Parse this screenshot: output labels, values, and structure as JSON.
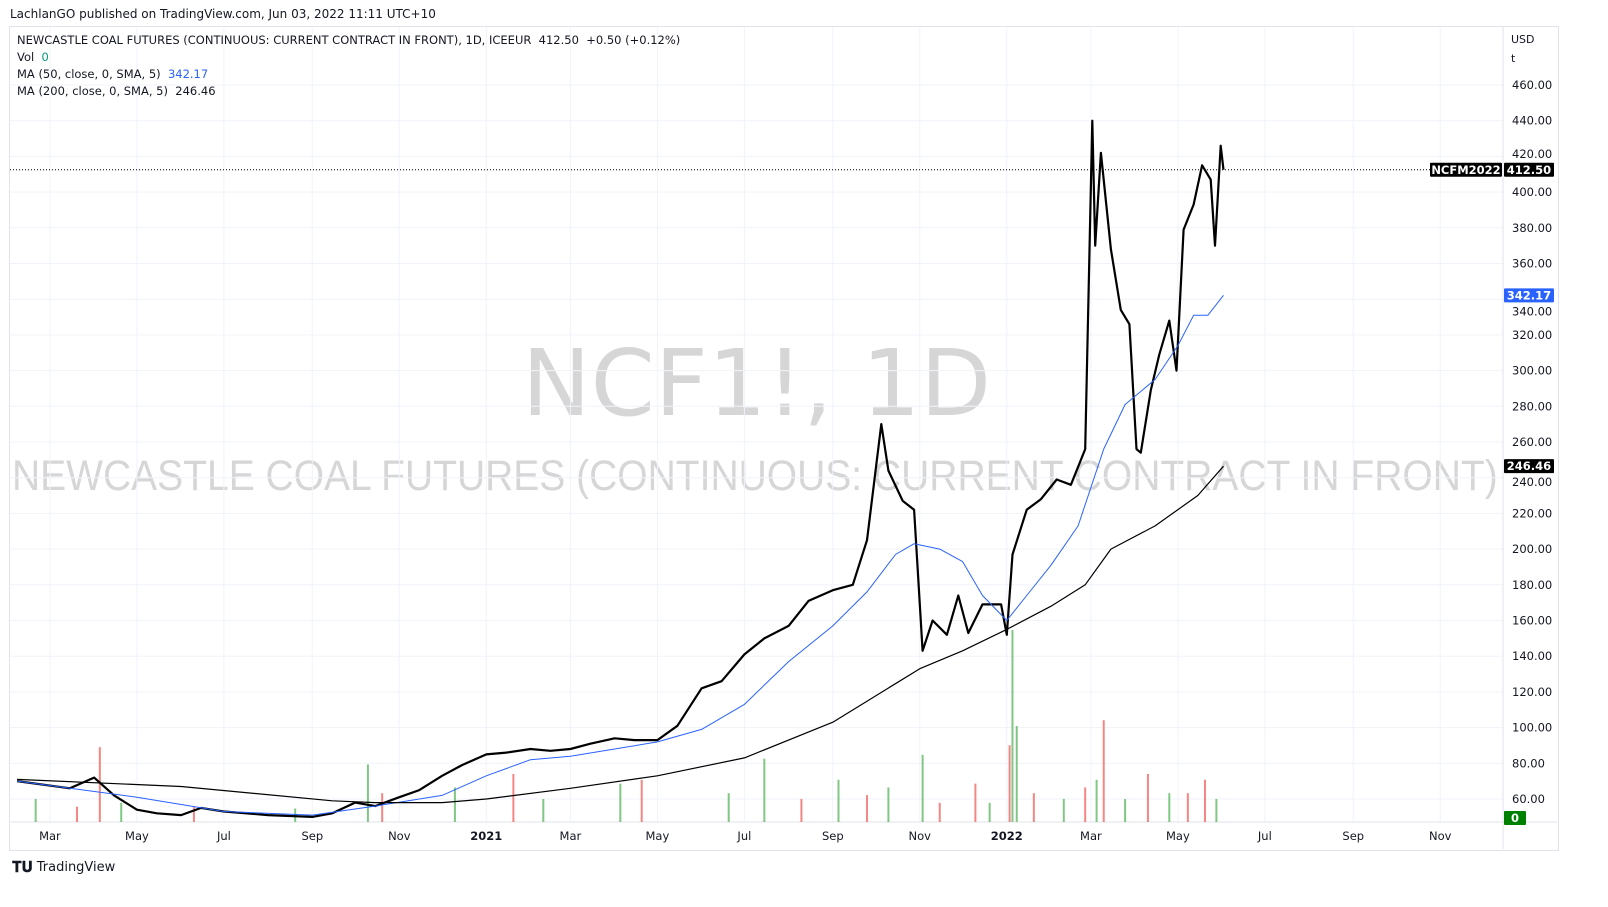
{
  "publish_line": "LachlanGO published on TradingView.com, Jun 03, 2022 11:11 UTC+10",
  "legend": {
    "title": "NEWCASTLE COAL FUTURES (CONTINUOUS: CURRENT CONTRACT IN FRONT), 1D, ICEEUR",
    "last": "412.50",
    "change": "+0.50 (+0.12%)",
    "vol_label": "Vol",
    "vol_value": "0",
    "ma50_label": "MA (50, close, 0, SMA, 5)",
    "ma50_value": "342.17",
    "ma200_label": "MA (200, close, 0, SMA, 5)",
    "ma200_value": "246.46"
  },
  "watermark": {
    "symbol": "NCF1!, 1D",
    "name": "NEWCASTLE COAL FUTURES (CONTINUOUS: CURRENT CONTRACT IN FRONT)"
  },
  "footer": {
    "brand": "TradingView"
  },
  "colors": {
    "price": "#000000",
    "ma50": "#2962ff",
    "ma200": "#000000",
    "vol_up": "#26a69a",
    "vol_up_bar": "#4caf50",
    "vol_down": "#ef5350",
    "grid": "#f0f3fa"
  },
  "chart_data": {
    "type": "line",
    "currency": "USD",
    "unit": "t",
    "ylim": [
      50,
      470
    ],
    "y_ticks": [
      "460.00",
      "440.00",
      "420.00",
      "400.00",
      "380.00",
      "360.00",
      "340.00",
      "320.00",
      "300.00",
      "280.00",
      "260.00",
      "240.00",
      "220.00",
      "200.00",
      "180.00",
      "160.00",
      "140.00",
      "120.00",
      "100.00",
      "80.00",
      "60.00"
    ],
    "x_ticks": [
      [
        "2020-03-01",
        "Mar"
      ],
      [
        "2020-05-01",
        "May"
      ],
      [
        "2020-07-01",
        "Jul"
      ],
      [
        "2020-09-01",
        "Sep"
      ],
      [
        "2020-11-01",
        "Nov"
      ],
      [
        "2021-01-01",
        "2021"
      ],
      [
        "2021-03-01",
        "Mar"
      ],
      [
        "2021-05-01",
        "May"
      ],
      [
        "2021-07-01",
        "Jul"
      ],
      [
        "2021-09-01",
        "Sep"
      ],
      [
        "2021-11-01",
        "Nov"
      ],
      [
        "2022-01-01",
        "2022"
      ],
      [
        "2022-03-01",
        "Mar"
      ],
      [
        "2022-05-01",
        "May"
      ],
      [
        "2022-07-01",
        "Jul"
      ],
      [
        "2022-09-01",
        "Sep"
      ],
      [
        "2022-11-01",
        "Nov"
      ]
    ],
    "xlim": [
      "2020-02-02",
      "2022-12-15"
    ],
    "grid": true,
    "last_price_label": {
      "symbol": "NCFM2022",
      "value": "412.50"
    },
    "ma50_label": "342.17",
    "ma200_label": "246.46",
    "vol_label": "0",
    "series": [
      {
        "name": "NCF1!",
        "points": [
          [
            "2020-02-07",
            70
          ],
          [
            "2020-03-15",
            66
          ],
          [
            "2020-04-01",
            72
          ],
          [
            "2020-04-15",
            62
          ],
          [
            "2020-05-01",
            54
          ],
          [
            "2020-05-15",
            52
          ],
          [
            "2020-06-01",
            51
          ],
          [
            "2020-06-15",
            55
          ],
          [
            "2020-07-01",
            53
          ],
          [
            "2020-08-01",
            51
          ],
          [
            "2020-09-01",
            50
          ],
          [
            "2020-09-15",
            52
          ],
          [
            "2020-10-01",
            58
          ],
          [
            "2020-10-15",
            56
          ],
          [
            "2020-11-01",
            61
          ],
          [
            "2020-11-15",
            65
          ],
          [
            "2020-12-01",
            73
          ],
          [
            "2020-12-15",
            79
          ],
          [
            "2021-01-01",
            85
          ],
          [
            "2021-01-15",
            86
          ],
          [
            "2021-02-01",
            88
          ],
          [
            "2021-02-15",
            87
          ],
          [
            "2021-03-01",
            88
          ],
          [
            "2021-03-15",
            91
          ],
          [
            "2021-04-01",
            94
          ],
          [
            "2021-04-15",
            93
          ],
          [
            "2021-05-01",
            93
          ],
          [
            "2021-05-15",
            101
          ],
          [
            "2021-06-01",
            122
          ],
          [
            "2021-06-15",
            126
          ],
          [
            "2021-07-01",
            141
          ],
          [
            "2021-07-15",
            150
          ],
          [
            "2021-08-01",
            157
          ],
          [
            "2021-08-15",
            171
          ],
          [
            "2021-09-01",
            177
          ],
          [
            "2021-09-15",
            180
          ],
          [
            "2021-09-25",
            205
          ],
          [
            "2021-10-05",
            270
          ],
          [
            "2021-10-10",
            244
          ],
          [
            "2021-10-20",
            227
          ],
          [
            "2021-10-28",
            222
          ],
          [
            "2021-11-03",
            143
          ],
          [
            "2021-11-10",
            160
          ],
          [
            "2021-11-20",
            152
          ],
          [
            "2021-11-28",
            174
          ],
          [
            "2021-12-05",
            153
          ],
          [
            "2021-12-15",
            169
          ],
          [
            "2021-12-28",
            169
          ],
          [
            "2022-01-01",
            152
          ],
          [
            "2022-01-05",
            197
          ],
          [
            "2022-01-15",
            222
          ],
          [
            "2022-01-25",
            228
          ],
          [
            "2022-02-05",
            239
          ],
          [
            "2022-02-15",
            236
          ],
          [
            "2022-02-25",
            256
          ],
          [
            "2022-03-02",
            440
          ],
          [
            "2022-03-04",
            370
          ],
          [
            "2022-03-08",
            422
          ],
          [
            "2022-03-15",
            368
          ],
          [
            "2022-03-22",
            334
          ],
          [
            "2022-03-28",
            326
          ],
          [
            "2022-04-02",
            256
          ],
          [
            "2022-04-05",
            254
          ],
          [
            "2022-04-12",
            289
          ],
          [
            "2022-04-18",
            309
          ],
          [
            "2022-04-25",
            328
          ],
          [
            "2022-04-30",
            300
          ],
          [
            "2022-05-05",
            379
          ],
          [
            "2022-05-12",
            393
          ],
          [
            "2022-05-18",
            415
          ],
          [
            "2022-05-24",
            407
          ],
          [
            "2022-05-27",
            370
          ],
          [
            "2022-05-31",
            426
          ],
          [
            "2022-06-02",
            412.5
          ]
        ]
      },
      {
        "name": "MA (50, close, 0, SMA, 5)",
        "points": [
          [
            "2020-02-07",
            70
          ],
          [
            "2020-05-01",
            61
          ],
          [
            "2020-07-01",
            53
          ],
          [
            "2020-09-01",
            51
          ],
          [
            "2020-10-15",
            56
          ],
          [
            "2020-12-01",
            62
          ],
          [
            "2021-01-01",
            73
          ],
          [
            "2021-02-01",
            82
          ],
          [
            "2021-03-01",
            84
          ],
          [
            "2021-04-01",
            88
          ],
          [
            "2021-05-01",
            92
          ],
          [
            "2021-06-01",
            99
          ],
          [
            "2021-07-01",
            113
          ],
          [
            "2021-08-01",
            137
          ],
          [
            "2021-09-01",
            157
          ],
          [
            "2021-09-25",
            176
          ],
          [
            "2021-10-15",
            197
          ],
          [
            "2021-10-28",
            203
          ],
          [
            "2021-11-15",
            200
          ],
          [
            "2021-12-01",
            193
          ],
          [
            "2021-12-15",
            174
          ],
          [
            "2022-01-01",
            160
          ],
          [
            "2022-01-15",
            174
          ],
          [
            "2022-02-01",
            191
          ],
          [
            "2022-02-20",
            213
          ],
          [
            "2022-03-10",
            256
          ],
          [
            "2022-03-25",
            281
          ],
          [
            "2022-04-15",
            295
          ],
          [
            "2022-05-01",
            314
          ],
          [
            "2022-05-12",
            331
          ],
          [
            "2022-05-22",
            331
          ],
          [
            "2022-06-02",
            342.17
          ]
        ]
      },
      {
        "name": "MA (200, close, 0, SMA, 5)",
        "points": [
          [
            "2020-02-07",
            71
          ],
          [
            "2020-06-01",
            67
          ],
          [
            "2020-09-15",
            59
          ],
          [
            "2020-10-15",
            58
          ],
          [
            "2020-12-01",
            58
          ],
          [
            "2021-01-01",
            60
          ],
          [
            "2021-03-01",
            66
          ],
          [
            "2021-05-01",
            73
          ],
          [
            "2021-07-01",
            83
          ],
          [
            "2021-09-01",
            103
          ],
          [
            "2021-11-01",
            133
          ],
          [
            "2021-12-01",
            143
          ],
          [
            "2022-01-01",
            155
          ],
          [
            "2022-02-01",
            168
          ],
          [
            "2022-02-25",
            180
          ],
          [
            "2022-03-15",
            200
          ],
          [
            "2022-04-15",
            213
          ],
          [
            "2022-05-15",
            230
          ],
          [
            "2022-06-02",
            246.46
          ]
        ]
      }
    ],
    "volume": [
      [
        "2020-02-20",
        0.12,
        "up"
      ],
      [
        "2020-03-20",
        0.08,
        "down"
      ],
      [
        "2020-04-05",
        0.39,
        "down"
      ],
      [
        "2020-04-20",
        0.1,
        "up"
      ],
      [
        "2020-06-10",
        0.08,
        "down"
      ],
      [
        "2020-08-20",
        0.07,
        "up"
      ],
      [
        "2020-10-10",
        0.3,
        "up"
      ],
      [
        "2020-10-20",
        0.15,
        "down"
      ],
      [
        "2020-12-10",
        0.18,
        "up"
      ],
      [
        "2021-01-20",
        0.25,
        "down"
      ],
      [
        "2021-02-10",
        0.12,
        "up"
      ],
      [
        "2021-04-05",
        0.2,
        "up"
      ],
      [
        "2021-04-20",
        0.22,
        "down"
      ],
      [
        "2021-06-20",
        0.15,
        "up"
      ],
      [
        "2021-07-15",
        0.33,
        "up"
      ],
      [
        "2021-08-10",
        0.12,
        "down"
      ],
      [
        "2021-09-05",
        0.22,
        "up"
      ],
      [
        "2021-09-25",
        0.14,
        "down"
      ],
      [
        "2021-10-10",
        0.18,
        "up"
      ],
      [
        "2021-11-03",
        0.35,
        "up"
      ],
      [
        "2021-11-15",
        0.1,
        "down"
      ],
      [
        "2021-12-10",
        0.2,
        "down"
      ],
      [
        "2021-12-20",
        0.1,
        "up"
      ],
      [
        "2022-01-03",
        0.4,
        "down"
      ],
      [
        "2022-01-05",
        1.0,
        "up"
      ],
      [
        "2022-01-08",
        0.5,
        "up"
      ],
      [
        "2022-01-20",
        0.15,
        "down"
      ],
      [
        "2022-02-10",
        0.12,
        "up"
      ],
      [
        "2022-02-25",
        0.18,
        "down"
      ],
      [
        "2022-03-05",
        0.22,
        "up"
      ],
      [
        "2022-03-10",
        0.53,
        "down"
      ],
      [
        "2022-03-25",
        0.12,
        "up"
      ],
      [
        "2022-04-10",
        0.25,
        "down"
      ],
      [
        "2022-04-25",
        0.15,
        "up"
      ],
      [
        "2022-05-08",
        0.15,
        "down"
      ],
      [
        "2022-05-20",
        0.22,
        "down"
      ],
      [
        "2022-05-28",
        0.12,
        "up"
      ]
    ]
  }
}
